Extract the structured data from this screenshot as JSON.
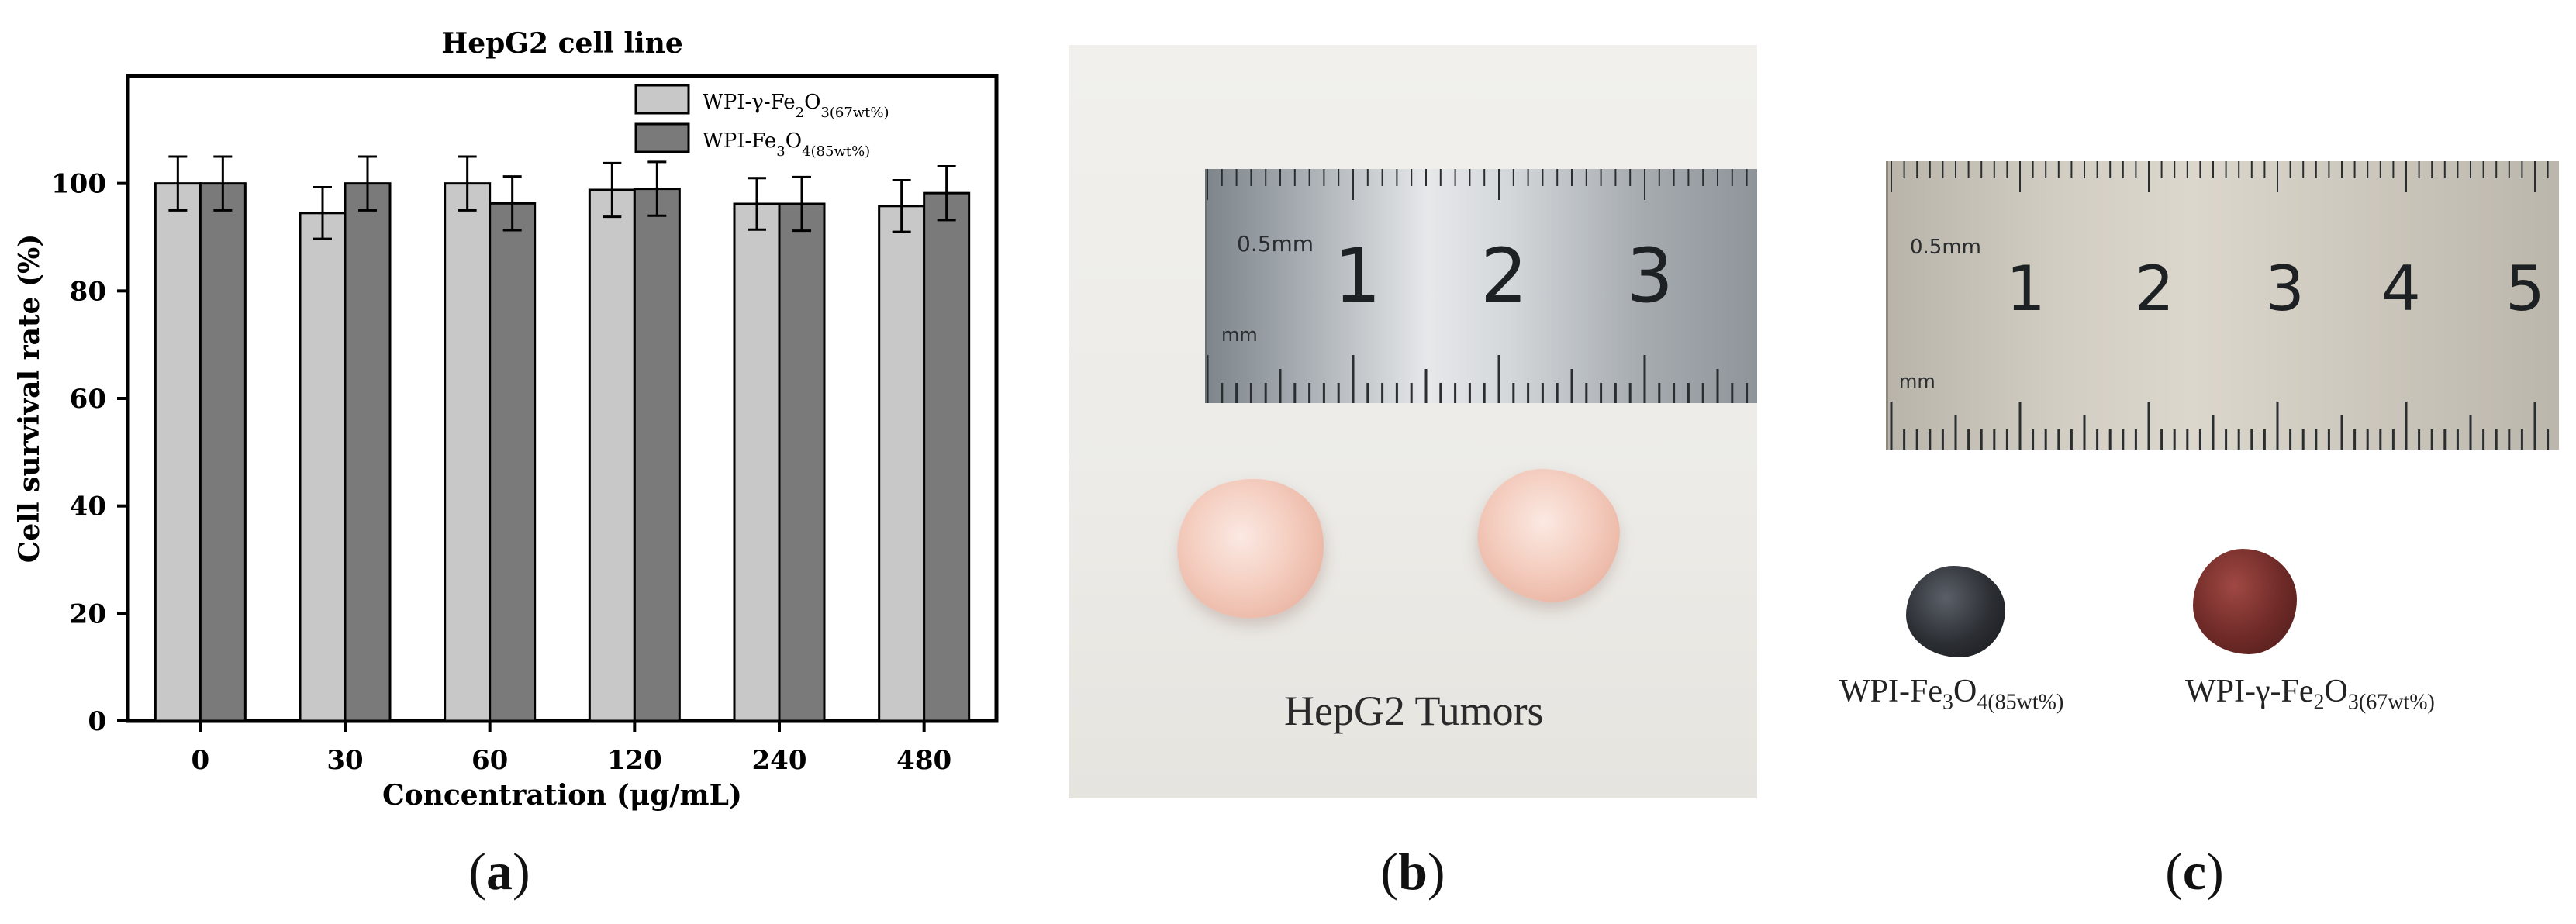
{
  "chart_data": {
    "type": "bar",
    "title": "HepG2 cell line",
    "xlabel": "Concentration (μg/mL)",
    "ylabel": "Cell survival rate (%)",
    "categories": [
      "0",
      "30",
      "60",
      "120",
      "240",
      "480"
    ],
    "ylim": [
      0,
      120
    ],
    "yticks": [
      0,
      20,
      40,
      60,
      80,
      100
    ],
    "legend_position": "top-right",
    "series": [
      {
        "name": "WPI-γ-Fe2O3(67wt%)",
        "legend_main": "WPI-γ-Fe",
        "legend_sub1": "2",
        "legend_mid": "O",
        "legend_sub2": "3(67wt%)",
        "color": "#c8c8c8",
        "values": [
          100.0,
          94.5,
          100.0,
          98.8,
          96.2,
          95.8
        ],
        "errors": [
          5.0,
          4.8,
          5.0,
          5.0,
          4.8,
          4.8
        ]
      },
      {
        "name": "WPI-Fe3O4(85wt%)",
        "legend_main": "WPI-Fe",
        "legend_sub1": "3",
        "legend_mid": "O",
        "legend_sub2": "4(85wt%)",
        "color": "#7a7a7a",
        "values": [
          100.0,
          100.0,
          96.3,
          99.0,
          96.2,
          98.2
        ],
        "errors": [
          5.0,
          5.0,
          5.0,
          5.0,
          5.0,
          5.0
        ]
      }
    ]
  },
  "captions": {
    "a": "a",
    "b": "b",
    "c": "c"
  },
  "panel_b": {
    "ruler_numbers": [
      "1",
      "2",
      "3"
    ],
    "ruler_small_top": "0.5mm",
    "ruler_small_bottom": "mm",
    "label": "HepG2 Tumors"
  },
  "panel_c": {
    "ruler_numbers": [
      "1",
      "2",
      "3",
      "4",
      "5"
    ],
    "ruler_small_top": "0.5mm",
    "ruler_small_bottom": "mm",
    "label_left": {
      "main": "WPI-Fe",
      "sub1": "3",
      "mid": "O",
      "sub2": "4(85wt%)"
    },
    "label_right": {
      "main": "WPI-γ-Fe",
      "sub1": "2",
      "mid": "O",
      "sub2": "3(67wt%)"
    },
    "bead_colors": [
      "#2b2e33",
      "#6e2a27"
    ]
  }
}
